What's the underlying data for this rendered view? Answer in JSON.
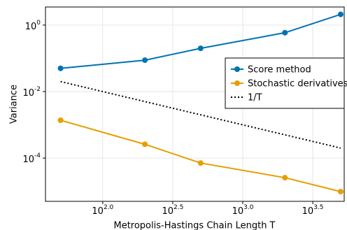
{
  "chart_data": {
    "type": "line",
    "x_label": "Metropolis-Hastings Chain Length T",
    "y_label": "Variance",
    "x": [
      50,
      200,
      500,
      2000,
      5000
    ],
    "series": [
      {
        "name": "Score method",
        "color": "#0072b2",
        "style": "solid",
        "marker": true,
        "values": [
          0.05,
          0.088,
          0.2,
          0.59,
          2.1
        ]
      },
      {
        "name": "Stochastic derivatives",
        "color": "#e69f00",
        "style": "solid",
        "marker": true,
        "values": [
          0.00137,
          0.00026,
          7.1e-05,
          2.57e-05,
          9.8e-06
        ]
      },
      {
        "name": "1/T",
        "color": "#000000",
        "style": "dotted",
        "marker": false,
        "values": [
          0.02,
          0.005,
          0.002,
          0.0005,
          0.0002
        ]
      }
    ],
    "xlog": true,
    "ylog": true,
    "xlim": [
      39,
      5300
    ],
    "ylim": [
      5e-06,
      3.5
    ],
    "xticks": [
      {
        "value": 100,
        "label": "10^2.0"
      },
      {
        "value": 316.228,
        "label": "10^2.5"
      },
      {
        "value": 1000,
        "label": "10^3.0"
      },
      {
        "value": 3162.28,
        "label": "10^3.5"
      }
    ],
    "yticks": [
      {
        "value": 1,
        "label": "10^0"
      },
      {
        "value": 0.01,
        "label": "10^-2"
      },
      {
        "value": 0.0001,
        "label": "10^-4"
      }
    ],
    "grid": true,
    "legend": "right"
  }
}
